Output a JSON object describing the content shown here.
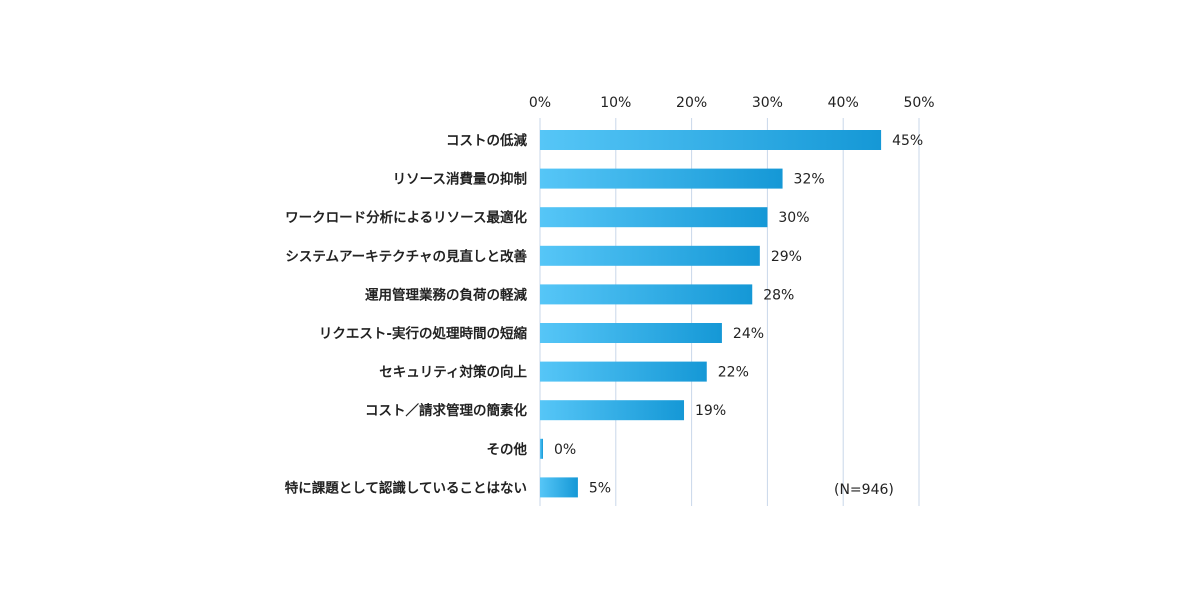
{
  "chart_data": {
    "type": "bar",
    "orientation": "horizontal",
    "categories": [
      "コストの低減",
      "リソース消費量の抑制",
      "ワークロード分析によるリソース最適化",
      "システムアーキテクチャの見直しと改善",
      "運用管理業務の負荷の軽減",
      "リクエスト-実行の処理時間の短縮",
      "セキュリティ対策の向上",
      "コスト／請求管理の簡素化",
      "その他",
      "特に課題として認識していることはない"
    ],
    "values": [
      45,
      32,
      30,
      29,
      28,
      24,
      22,
      19,
      0,
      5
    ],
    "value_labels": [
      "45%",
      "32%",
      "30%",
      "29%",
      "28%",
      "24%",
      "22%",
      "19%",
      "0%",
      "5%"
    ],
    "xlim": [
      0,
      50
    ],
    "xticks": [
      0,
      10,
      20,
      30,
      40,
      50
    ],
    "xtick_labels": [
      "0%",
      "10%",
      "20%",
      "30%",
      "40%",
      "50%"
    ],
    "x_axis_position": "top",
    "grid": true,
    "note": "(N=946)",
    "colors": {
      "bar_light": "#56c6f7",
      "bar_dark": "#1598d6",
      "grid": "#c9d7ea",
      "text": "#222222"
    }
  }
}
